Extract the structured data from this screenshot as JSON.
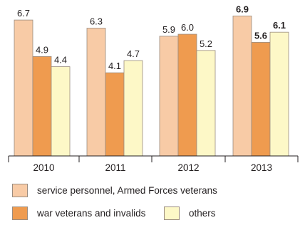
{
  "chart_data": {
    "type": "bar",
    "categories": [
      "2010",
      "2011",
      "2012",
      "2013"
    ],
    "series": [
      {
        "name": "service personnel, Armed Forces veterans",
        "values": [
          6.7,
          6.3,
          5.9,
          6.9
        ],
        "color": "#f8cba6"
      },
      {
        "name": "war veterans and invalids",
        "values": [
          4.9,
          4.1,
          6.0,
          5.6
        ],
        "color": "#ef9b4f"
      },
      {
        "name": "others",
        "values": [
          4.4,
          4.7,
          5.2,
          6.1
        ],
        "color": "#fdf8c7"
      }
    ],
    "value_labels": [
      [
        "6.7",
        "6.3",
        "5.9",
        "6.9"
      ],
      [
        "4.9",
        "4.1",
        "6.0",
        "5.6"
      ],
      [
        "4.4",
        "4.7",
        "5.2",
        "6.1"
      ]
    ],
    "bold_category": "2013",
    "ylim": [
      0,
      7.3
    ],
    "grid": false,
    "legend_position": "bottom"
  }
}
